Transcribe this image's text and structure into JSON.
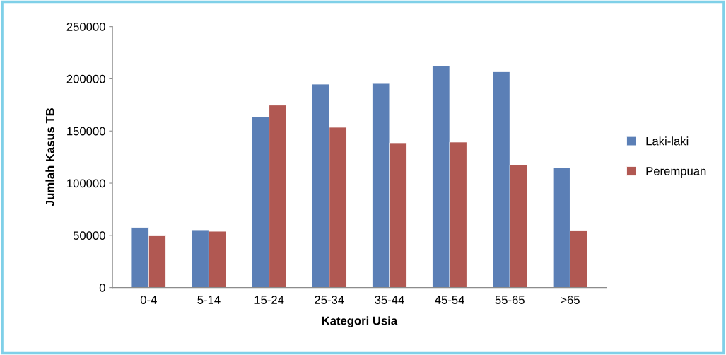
{
  "chart_data": {
    "type": "bar",
    "xlabel": "Kategori Usia",
    "ylabel": "Jumlah Kasus TB",
    "categories": [
      "0-4",
      "5-14",
      "15-24",
      "25-34",
      "35-44",
      "45-54",
      "55-65",
      ">65"
    ],
    "series": [
      {
        "name": "Laki-laki",
        "color": "#5b7fb6",
        "values": [
          57500,
          55300,
          163700,
          194900,
          195500,
          212200,
          206800,
          114800
        ]
      },
      {
        "name": "Perempuan",
        "color": "#b15852",
        "values": [
          49600,
          53900,
          174800,
          153600,
          138700,
          139400,
          117500,
          54800
        ]
      }
    ],
    "ylim": [
      0,
      250000
    ],
    "yticks": [
      0,
      50000,
      100000,
      150000,
      200000,
      250000
    ],
    "grid": false,
    "legend": "right"
  }
}
